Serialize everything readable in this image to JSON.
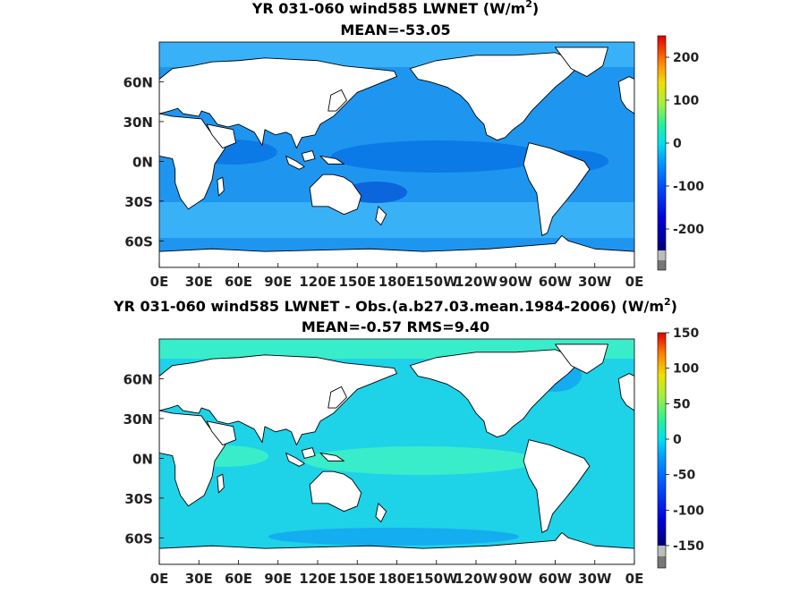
{
  "chart_data": [
    {
      "type": "heatmap",
      "title_line1": "YR 031-060 wind585  LWNET (W/m",
      "title_sup": "2",
      "title_close": ")",
      "subtitle": "MEAN=-53.05",
      "x_ticks": [
        "0E",
        "30E",
        "60E",
        "90E",
        "120E",
        "150E",
        "180E",
        "150W",
        "120W",
        "90W",
        "60W",
        "30W",
        "0E"
      ],
      "y_ticks": [
        "60N",
        "30N",
        "0N",
        "30S",
        "60S"
      ],
      "y_tick_lats": [
        60,
        30,
        0,
        -30,
        -60
      ],
      "lon_range": [
        0,
        360
      ],
      "lat_range": [
        -80,
        90
      ],
      "colorbar": {
        "range": [
          -250,
          250
        ],
        "ticks": [
          "200",
          "100",
          "0",
          "-100",
          "-200"
        ],
        "tick_values": [
          200,
          100,
          0,
          -100,
          -200
        ]
      },
      "mean": -53.05
    },
    {
      "type": "heatmap",
      "title_line1": "YR 031-060 wind585 LWNET - Obs.(a.b27.03.mean.1984-2006) (W/m",
      "title_sup": "2",
      "title_close": ")",
      "subtitle": "MEAN=-0.57 RMS=9.40",
      "x_ticks": [
        "0E",
        "30E",
        "60E",
        "90E",
        "120E",
        "150E",
        "180E",
        "150W",
        "120W",
        "90W",
        "60W",
        "30W",
        "0E"
      ],
      "y_ticks": [
        "60N",
        "30N",
        "0N",
        "30S",
        "60S"
      ],
      "y_tick_lats": [
        60,
        30,
        0,
        -30,
        -60
      ],
      "lon_range": [
        0,
        360
      ],
      "lat_range": [
        -80,
        90
      ],
      "colorbar": {
        "range": [
          -150,
          150
        ],
        "ticks": [
          "150",
          "100",
          "50",
          "0",
          "-50",
          "-100",
          "-150"
        ],
        "tick_values": [
          150,
          100,
          50,
          0,
          -50,
          -100,
          -150
        ]
      },
      "mean": -0.57,
      "rms": 9.4
    }
  ],
  "colors": {
    "ocean_top": "#1e96f0",
    "ocean_top_dark": "#0a78e6",
    "ocean_top_light": "#3cb4f8",
    "ocean_bottom": "#1ed2e8",
    "ocean_bottom_light": "#3cf0c8",
    "ocean_bottom_dark": "#14aaf0",
    "land": "#ffffff",
    "gray_low": "#888888",
    "gray_mid": "#bbbbbb"
  }
}
